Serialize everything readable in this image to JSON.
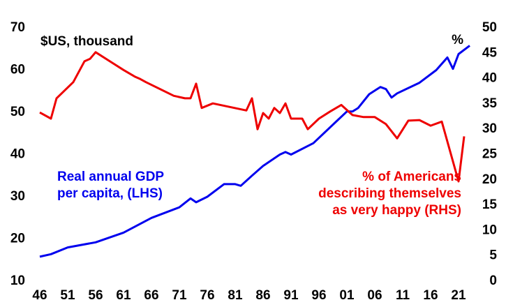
{
  "chart_data": {
    "type": "line",
    "y_unit_label": "$US, thousand",
    "y2_unit_label": "%",
    "xlim": [
      1946,
      2023
    ],
    "xticks": [
      {
        "value": 1946,
        "label": "46"
      },
      {
        "value": 1951,
        "label": "51"
      },
      {
        "value": 1956,
        "label": "56"
      },
      {
        "value": 1961,
        "label": "61"
      },
      {
        "value": 1966,
        "label": "66"
      },
      {
        "value": 1971,
        "label": "71"
      },
      {
        "value": 1976,
        "label": "76"
      },
      {
        "value": 1981,
        "label": "81"
      },
      {
        "value": 1986,
        "label": "86"
      },
      {
        "value": 1991,
        "label": "91"
      },
      {
        "value": 1996,
        "label": "96"
      },
      {
        "value": 2001,
        "label": "01"
      },
      {
        "value": 2006,
        "label": "06"
      },
      {
        "value": 2011,
        "label": "11"
      },
      {
        "value": 2016,
        "label": "16"
      },
      {
        "value": 2021,
        "label": "21"
      }
    ],
    "ylim": [
      10,
      70
    ],
    "yticks": [
      10,
      20,
      30,
      40,
      50,
      60,
      70
    ],
    "y2lim": [
      0,
      50
    ],
    "y2ticks": [
      0,
      5,
      10,
      15,
      20,
      25,
      30,
      35,
      40,
      45,
      50
    ],
    "grid": false,
    "series": [
      {
        "name": "Real annual GDP per capita, (LHS)",
        "color": "#0000ee",
        "axis": "y",
        "x": [
          1946,
          1948,
          1951,
          1956,
          1961,
          1966,
          1971,
          1973,
          1974,
          1976,
          1979,
          1981,
          1982,
          1984,
          1986,
          1989,
          1990,
          1991,
          1995,
          1999,
          2001,
          2002,
          2003,
          2005,
          2007,
          2008,
          2009,
          2010,
          2014,
          2017,
          2019,
          2020,
          2021,
          2023
        ],
        "values": [
          15.8,
          16.4,
          18,
          19.2,
          21.5,
          25,
          27.5,
          29.6,
          28.7,
          30,
          33,
          33,
          32.6,
          35,
          37.3,
          40,
          40.6,
          40,
          42.7,
          47.7,
          50.2,
          50.2,
          51,
          54.3,
          56,
          55.5,
          53.5,
          54.5,
          57,
          60,
          63,
          60.3,
          63.8,
          65.8
        ]
      },
      {
        "name": "% of Americans describing themselves as very happy (RHS)",
        "color": "#ee0000",
        "axis": "y2",
        "x": [
          1946,
          1948,
          1949,
          1952,
          1954,
          1955,
          1956,
          1959,
          1961,
          1963,
          1964,
          1965,
          1970,
          1972,
          1973,
          1974,
          1975,
          1977,
          1983,
          1984,
          1985,
          1986,
          1987,
          1988,
          1989,
          1990,
          1991,
          1993,
          1994,
          1996,
          1998,
          2000,
          2002,
          2004,
          2006,
          2008,
          2010,
          2012,
          2014,
          2016,
          2018,
          2021,
          2022
        ],
        "values": [
          33.3,
          32.1,
          36.1,
          39.3,
          43.4,
          43.9,
          45.2,
          43.1,
          41.7,
          40.4,
          39.9,
          39.3,
          36.6,
          36.1,
          36.1,
          39,
          34.2,
          35.1,
          33.7,
          36.1,
          30,
          33.2,
          32.1,
          34.2,
          33.2,
          35.1,
          32.1,
          32.1,
          30,
          32.1,
          33.5,
          34.8,
          32.8,
          32.4,
          32.4,
          31,
          28.2,
          31.7,
          31.8,
          30.7,
          31.5,
          19.7,
          28.6
        ]
      }
    ],
    "annotations": [
      {
        "lines": [
          "Real annual GDP",
          "per capita, (LHS)"
        ],
        "color": "#0000ee"
      },
      {
        "lines": [
          "% of Americans",
          "describing themselves",
          "as very happy (RHS)"
        ],
        "color": "#ee0000"
      }
    ]
  }
}
